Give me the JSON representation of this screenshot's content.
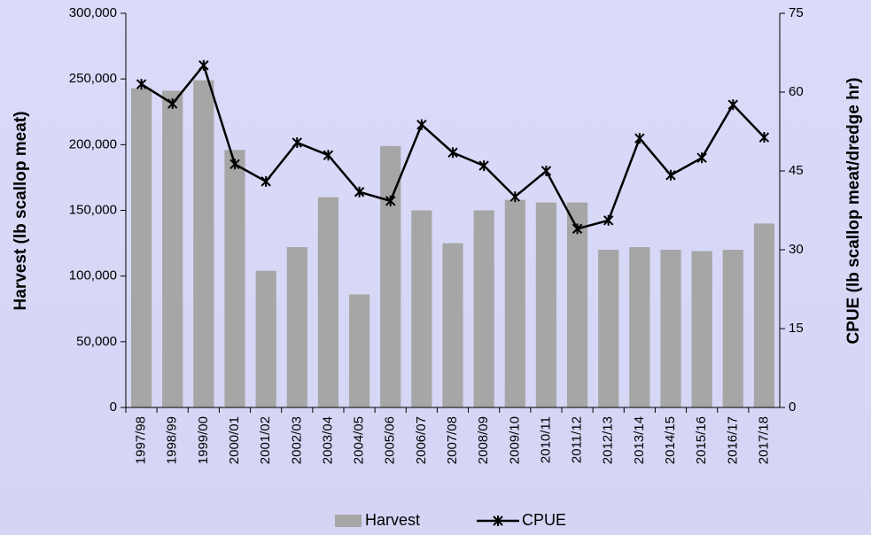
{
  "chart_data": {
    "type": "bar-line",
    "y_label": "Harvest (lb scallop meat)",
    "y2_label": "CPUE (lb scallop meat/dredge hr)",
    "categories": [
      "1997/98",
      "1998/99",
      "1999/00",
      "2000/01",
      "2001/02",
      "2002/03",
      "2003/04",
      "2004/05",
      "2005/06",
      "2006/07",
      "2007/08",
      "2008/09",
      "2009/10",
      "2010/11",
      "2011/12",
      "2012/13",
      "2013/14",
      "2014/15",
      "2015/16",
      "2016/17",
      "2017/18"
    ],
    "series": [
      {
        "name": "Harvest",
        "type": "bar",
        "color": "#a6a6a6",
        "values": [
          243000,
          241000,
          249000,
          196000,
          104000,
          122000,
          160000,
          86000,
          199000,
          150000,
          125000,
          150000,
          158000,
          156000,
          156000,
          120000,
          122000,
          120000,
          119000,
          120000,
          140000
        ]
      },
      {
        "name": "CPUE",
        "type": "line",
        "axis": "y2",
        "color": "#000000",
        "values": [
          61.5,
          57.8,
          65.1,
          46.3,
          43.0,
          50.4,
          48.0,
          41.0,
          39.3,
          53.8,
          48.5,
          46.0,
          40.1,
          45.0,
          34.0,
          35.6,
          51.2,
          44.2,
          47.5,
          57.6,
          51.4
        ]
      }
    ],
    "ylim": [
      0,
      300000
    ],
    "yticks": [
      0,
      {
        "value": 50000,
        "label": "50,000"
      },
      {
        "value": 100000,
        "label": "100,000"
      },
      {
        "value": 150000,
        "label": "150,000"
      },
      {
        "value": 200000,
        "label": "200,000"
      },
      {
        "value": 250000,
        "label": "250,000"
      },
      {
        "value": 300000,
        "label": "300,000"
      }
    ],
    "y2lim": [
      0,
      75
    ],
    "y2ticks": [
      0,
      15,
      30,
      45,
      60,
      75
    ],
    "legend": "bottom"
  }
}
